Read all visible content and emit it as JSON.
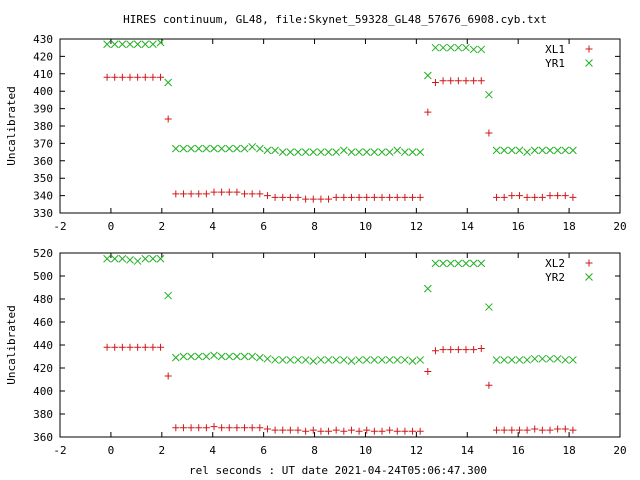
{
  "title": "HIRES continuum, GL48, file:Skynet_59328_GL48_57676_6908.cyb.txt",
  "xlabel": "rel seconds : UT date 2021-04-24T05:06:47.300",
  "colors": {
    "red": "#d01818",
    "green": "#20b020"
  },
  "chart_data": [
    {
      "type": "scatter",
      "ylabel": "Uncalibrated",
      "xlim": [
        -2,
        20
      ],
      "ylim": [
        330,
        430
      ],
      "xticks": [
        -2,
        0,
        2,
        4,
        6,
        8,
        10,
        12,
        14,
        16,
        18,
        20
      ],
      "yticks": [
        330,
        340,
        350,
        360,
        370,
        380,
        390,
        400,
        410,
        420,
        430
      ],
      "grid": false,
      "legend": "top-right",
      "series": [
        {
          "name": "XL1",
          "marker": "plus",
          "color": "red",
          "x": [
            -0.15,
            0.15,
            0.45,
            0.75,
            1.05,
            1.35,
            1.65,
            1.95,
            2.25,
            2.55,
            2.85,
            3.15,
            3.45,
            3.75,
            4.05,
            4.35,
            4.65,
            4.95,
            5.25,
            5.55,
            5.85,
            6.15,
            6.45,
            6.75,
            7.05,
            7.35,
            7.65,
            7.95,
            8.25,
            8.55,
            8.85,
            9.15,
            9.45,
            9.75,
            10.05,
            10.35,
            10.65,
            10.95,
            11.25,
            11.55,
            11.85,
            12.15,
            12.45,
            12.75,
            13.05,
            13.35,
            13.65,
            13.95,
            14.25,
            14.55,
            14.85,
            15.15,
            15.45,
            15.75,
            16.05,
            16.35,
            16.65,
            16.95,
            17.25,
            17.55,
            17.85,
            18.15
          ],
          "y": [
            408,
            408,
            408,
            408,
            408,
            408,
            408,
            408,
            384,
            341,
            341,
            341,
            341,
            341,
            342,
            342,
            342,
            342,
            341,
            341,
            341,
            340,
            339,
            339,
            339,
            339,
            338,
            338,
            338,
            338,
            339,
            339,
            339,
            339,
            339,
            339,
            339,
            339,
            339,
            339,
            339,
            339,
            388,
            405,
            406,
            406,
            406,
            406,
            406,
            406,
            376,
            339,
            339,
            340,
            340,
            339,
            339,
            339,
            340,
            340,
            340,
            339
          ]
        },
        {
          "name": "YR1",
          "marker": "cross",
          "color": "green",
          "x": [
            -0.15,
            0.15,
            0.45,
            0.75,
            1.05,
            1.35,
            1.65,
            1.95,
            2.25,
            2.55,
            2.85,
            3.15,
            3.45,
            3.75,
            4.05,
            4.35,
            4.65,
            4.95,
            5.25,
            5.55,
            5.85,
            6.15,
            6.45,
            6.75,
            7.05,
            7.35,
            7.65,
            7.95,
            8.25,
            8.55,
            8.85,
            9.15,
            9.45,
            9.75,
            10.05,
            10.35,
            10.65,
            10.95,
            11.25,
            11.55,
            11.85,
            12.15,
            12.45,
            12.75,
            13.05,
            13.35,
            13.65,
            13.95,
            14.25,
            14.55,
            14.85,
            15.15,
            15.45,
            15.75,
            16.05,
            16.35,
            16.65,
            16.95,
            17.25,
            17.55,
            17.85,
            18.15
          ],
          "y": [
            427,
            427,
            427,
            427,
            427,
            427,
            427,
            428,
            405,
            367,
            367,
            367,
            367,
            367,
            367,
            367,
            367,
            367,
            367,
            368,
            367,
            366,
            366,
            365,
            365,
            365,
            365,
            365,
            365,
            365,
            365,
            366,
            365,
            365,
            365,
            365,
            365,
            365,
            366,
            365,
            365,
            365,
            409,
            425,
            425,
            425,
            425,
            425,
            424,
            424,
            398,
            366,
            366,
            366,
            366,
            365,
            366,
            366,
            366,
            366,
            366,
            366
          ]
        }
      ]
    },
    {
      "type": "scatter",
      "ylabel": "Uncalibrated",
      "xlim": [
        -2,
        20
      ],
      "ylim": [
        360,
        520
      ],
      "xticks": [
        -2,
        0,
        2,
        4,
        6,
        8,
        10,
        12,
        14,
        16,
        18,
        20
      ],
      "yticks": [
        360,
        380,
        400,
        420,
        440,
        460,
        480,
        500,
        520
      ],
      "grid": false,
      "legend": "top-right",
      "series": [
        {
          "name": "XL2",
          "marker": "plus",
          "color": "red",
          "x": [
            -0.15,
            0.15,
            0.45,
            0.75,
            1.05,
            1.35,
            1.65,
            1.95,
            2.25,
            2.55,
            2.85,
            3.15,
            3.45,
            3.75,
            4.05,
            4.35,
            4.65,
            4.95,
            5.25,
            5.55,
            5.85,
            6.15,
            6.45,
            6.75,
            7.05,
            7.35,
            7.65,
            7.95,
            8.25,
            8.55,
            8.85,
            9.15,
            9.45,
            9.75,
            10.05,
            10.35,
            10.65,
            10.95,
            11.25,
            11.55,
            11.85,
            12.15,
            12.45,
            12.75,
            13.05,
            13.35,
            13.65,
            13.95,
            14.25,
            14.55,
            14.85,
            15.15,
            15.45,
            15.75,
            16.05,
            16.35,
            16.65,
            16.95,
            17.25,
            17.55,
            17.85,
            18.15
          ],
          "y": [
            438,
            438,
            438,
            438,
            438,
            438,
            438,
            438,
            413,
            368,
            368,
            368,
            368,
            368,
            369,
            368,
            368,
            368,
            368,
            368,
            368,
            367,
            366,
            366,
            366,
            366,
            365,
            366,
            365,
            365,
            366,
            365,
            366,
            365,
            366,
            365,
            365,
            366,
            365,
            365,
            365,
            365,
            417,
            435,
            436,
            436,
            436,
            436,
            436,
            437,
            405,
            366,
            366,
            366,
            366,
            366,
            367,
            366,
            366,
            367,
            367,
            366
          ]
        },
        {
          "name": "YR2",
          "marker": "cross",
          "color": "green",
          "x": [
            -0.15,
            0.15,
            0.45,
            0.75,
            1.05,
            1.35,
            1.65,
            1.95,
            2.25,
            2.55,
            2.85,
            3.15,
            3.45,
            3.75,
            4.05,
            4.35,
            4.65,
            4.95,
            5.25,
            5.55,
            5.85,
            6.15,
            6.45,
            6.75,
            7.05,
            7.35,
            7.65,
            7.95,
            8.25,
            8.55,
            8.85,
            9.15,
            9.45,
            9.75,
            10.05,
            10.35,
            10.65,
            10.95,
            11.25,
            11.55,
            11.85,
            12.15,
            12.45,
            12.75,
            13.05,
            13.35,
            13.65,
            13.95,
            14.25,
            14.55,
            14.85,
            15.15,
            15.45,
            15.75,
            16.05,
            16.35,
            16.65,
            16.95,
            17.25,
            17.55,
            17.85,
            18.15
          ],
          "y": [
            515,
            515,
            515,
            514,
            513,
            515,
            515,
            515,
            483,
            429,
            430,
            430,
            430,
            430,
            431,
            430,
            430,
            430,
            430,
            430,
            429,
            428,
            427,
            427,
            427,
            427,
            427,
            426,
            427,
            427,
            427,
            427,
            426,
            427,
            427,
            427,
            427,
            427,
            427,
            427,
            426,
            427,
            489,
            511,
            511,
            511,
            511,
            511,
            511,
            511,
            473,
            427,
            427,
            427,
            427,
            427,
            428,
            428,
            428,
            428,
            427,
            427
          ]
        }
      ]
    }
  ]
}
